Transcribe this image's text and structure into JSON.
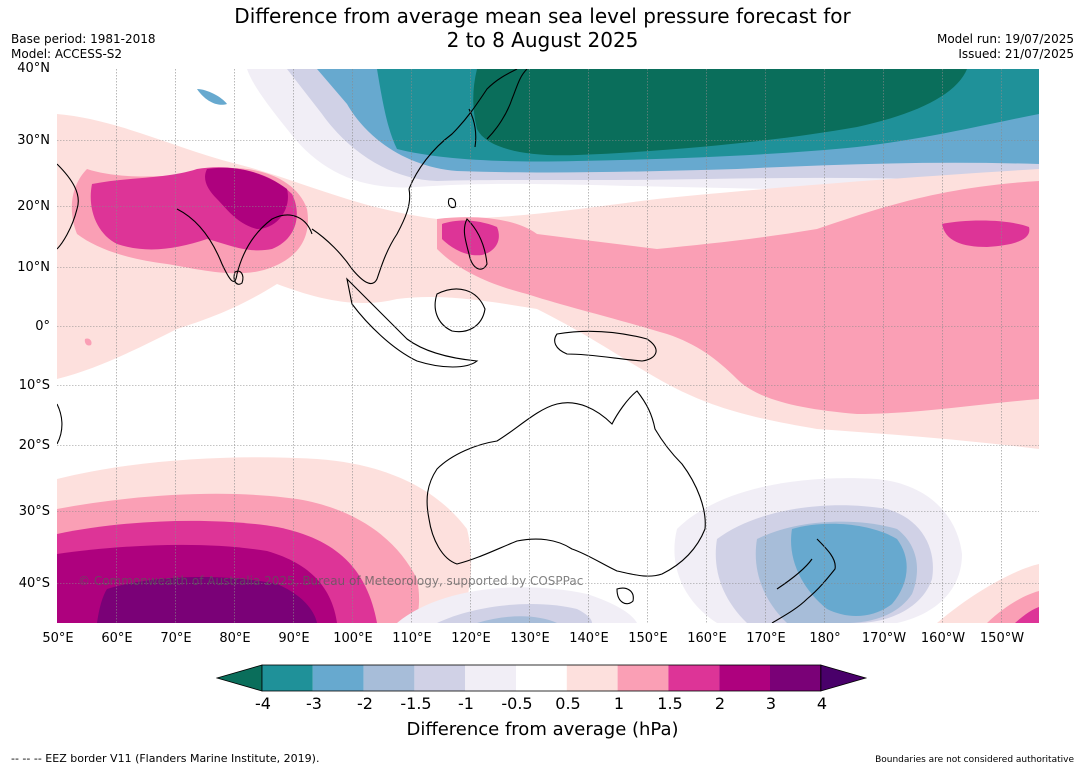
{
  "title_line1": "Difference from average mean sea level pressure forecast for",
  "title_line2": "2 to 8 August 2025",
  "base_period": "Base period: 1981-2018",
  "model": "Model: ACCESS-S2",
  "model_run": "Model run: 19/07/2025",
  "issued": "Issued: 21/07/2025",
  "lat_labels": [
    "40°N",
    "30°N",
    "20°N",
    "10°N",
    "0°",
    "10°S",
    "20°S",
    "30°S",
    "40°S"
  ],
  "lon_labels": [
    "50°E",
    "60°E",
    "70°E",
    "80°E",
    "90°E",
    "100°E",
    "110°E",
    "120°E",
    "130°E",
    "140°E",
    "150°E",
    "160°E",
    "170°E",
    "180°",
    "170°W",
    "160°W",
    "150°W"
  ],
  "colorbar": {
    "ticks": [
      "-4",
      "-3",
      "-2",
      "-1.5",
      "-1",
      "-0.5",
      "0.5",
      "1",
      "1.5",
      "2",
      "3",
      "4"
    ],
    "colors": [
      "#0a6e5b",
      "#1f9199",
      "#67a9cf",
      "#a7bdd9",
      "#d0d1e6",
      "#f1eef6",
      "#ffffff",
      "#fde0dd",
      "#fa9fb5",
      "#dd3497",
      "#ae017e",
      "#7a0177",
      "#49006a"
    ],
    "label": "Difference from average (hPa)"
  },
  "copyright": "© Commonwealth of Australia 2025, Bureau of Meteorology, supported by COSPPac",
  "footer_left": "--  --  -- EEZ border V11 (Flanders Marine Institute, 2019).",
  "footer_right": "Boundaries are not considered authoritative"
}
